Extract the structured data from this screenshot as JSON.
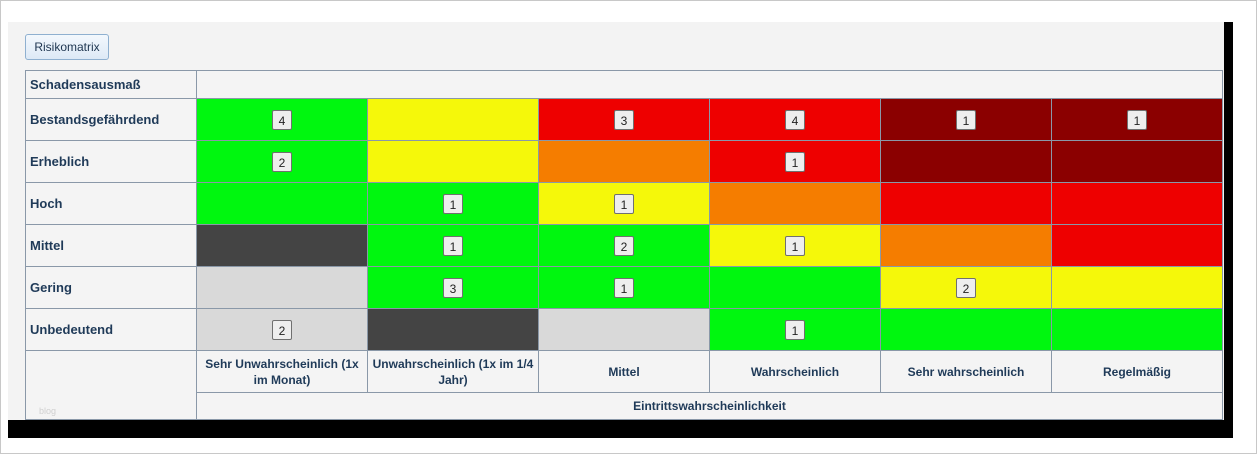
{
  "button": {
    "label": "Risikomatrix"
  },
  "matrix": {
    "top_label": "Schadensausmaß",
    "x_axis_label": "Eintrittswahrscheinlichkeit",
    "columns": [
      "Sehr Unwahrscheinlich (1x im Monat)",
      "Unwahrscheinlich (1x im 1/4 Jahr)",
      "Mittel",
      "Wahrscheinlich",
      "Sehr wahrscheinlich",
      "Regelmäßig"
    ],
    "rows": [
      {
        "label": "Bestandsgefährdend",
        "cells": [
          {
            "color": "#00f70f",
            "count": "4"
          },
          {
            "color": "#f5f80a",
            "count": ""
          },
          {
            "color": "#ee0000",
            "count": "3"
          },
          {
            "color": "#ee0000",
            "count": "4"
          },
          {
            "color": "#8b0000",
            "count": "1"
          },
          {
            "color": "#8b0000",
            "count": "1"
          }
        ]
      },
      {
        "label": "Erheblich",
        "cells": [
          {
            "color": "#00f70f",
            "count": "2"
          },
          {
            "color": "#f5f80a",
            "count": ""
          },
          {
            "color": "#f57d00",
            "count": ""
          },
          {
            "color": "#ee0000",
            "count": "1"
          },
          {
            "color": "#8b0000",
            "count": ""
          },
          {
            "color": "#8b0000",
            "count": ""
          }
        ]
      },
      {
        "label": "Hoch",
        "cells": [
          {
            "color": "#00f70f",
            "count": ""
          },
          {
            "color": "#00f70f",
            "count": "1"
          },
          {
            "color": "#f5f80a",
            "count": "1"
          },
          {
            "color": "#f57d00",
            "count": ""
          },
          {
            "color": "#ee0000",
            "count": ""
          },
          {
            "color": "#ee0000",
            "count": ""
          }
        ]
      },
      {
        "label": "Mittel",
        "cells": [
          {
            "color": "#444444",
            "count": ""
          },
          {
            "color": "#00f70f",
            "count": "1"
          },
          {
            "color": "#00f70f",
            "count": "2"
          },
          {
            "color": "#f5f80a",
            "count": "1"
          },
          {
            "color": "#f57d00",
            "count": ""
          },
          {
            "color": "#ee0000",
            "count": ""
          }
        ]
      },
      {
        "label": "Gering",
        "cells": [
          {
            "color": "#d9d9d9",
            "count": ""
          },
          {
            "color": "#00f70f",
            "count": "3"
          },
          {
            "color": "#00f70f",
            "count": "1"
          },
          {
            "color": "#00f70f",
            "count": ""
          },
          {
            "color": "#f5f80a",
            "count": "2"
          },
          {
            "color": "#f5f80a",
            "count": ""
          }
        ]
      },
      {
        "label": "Unbedeutend",
        "cells": [
          {
            "color": "#d9d9d9",
            "count": "2"
          },
          {
            "color": "#444444",
            "count": ""
          },
          {
            "color": "#d9d9d9",
            "count": ""
          },
          {
            "color": "#00f70f",
            "count": "1"
          },
          {
            "color": "#00f70f",
            "count": ""
          },
          {
            "color": "#00f70f",
            "count": ""
          }
        ]
      }
    ]
  },
  "watermark": "blog"
}
